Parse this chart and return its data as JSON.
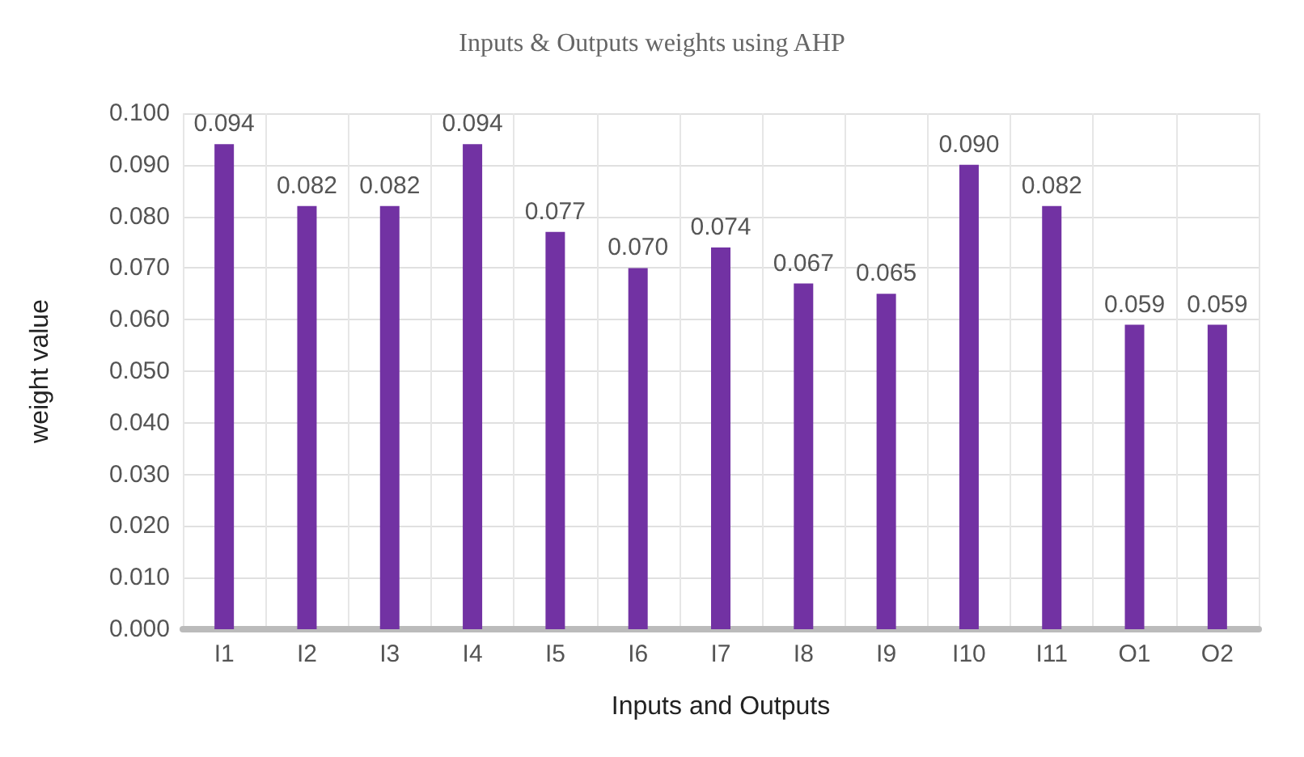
{
  "chart_data": {
    "type": "bar",
    "title": "Inputs & Outputs weights using AHP",
    "xlabel": "Inputs and Outputs",
    "ylabel": "weight value",
    "categories": [
      "I1",
      "I2",
      "I3",
      "I4",
      "I5",
      "I6",
      "I7",
      "I8",
      "I9",
      "I10",
      "I11",
      "O1",
      "O2"
    ],
    "values": [
      0.094,
      0.082,
      0.082,
      0.094,
      0.077,
      0.07,
      0.074,
      0.067,
      0.065,
      0.09,
      0.082,
      0.059,
      0.059
    ],
    "color": "#7232a3",
    "ylim": [
      0,
      0.1
    ],
    "yticks": [
      {
        "value": 0,
        "label": "0.000"
      },
      {
        "value": 0.01,
        "label": "0.010"
      },
      {
        "value": 0.02,
        "label": "0.020"
      },
      {
        "value": 0.03,
        "label": "0.030"
      },
      {
        "value": 0.04,
        "label": "0.040"
      },
      {
        "value": 0.05,
        "label": "0.050"
      },
      {
        "value": 0.06,
        "label": "0.060"
      },
      {
        "value": 0.07,
        "label": "0.070"
      },
      {
        "value": 0.08,
        "label": "0.080"
      },
      {
        "value": 0.09,
        "label": "0.090"
      },
      {
        "value": 0.1,
        "label": "0.100"
      }
    ],
    "value_labels": [
      "0.094",
      "0.082",
      "0.082",
      "0.094",
      "0.077",
      "0.070",
      "0.074",
      "0.067",
      "0.065",
      "0.090",
      "0.082",
      "0.059",
      "0.059"
    ],
    "grid": true
  }
}
